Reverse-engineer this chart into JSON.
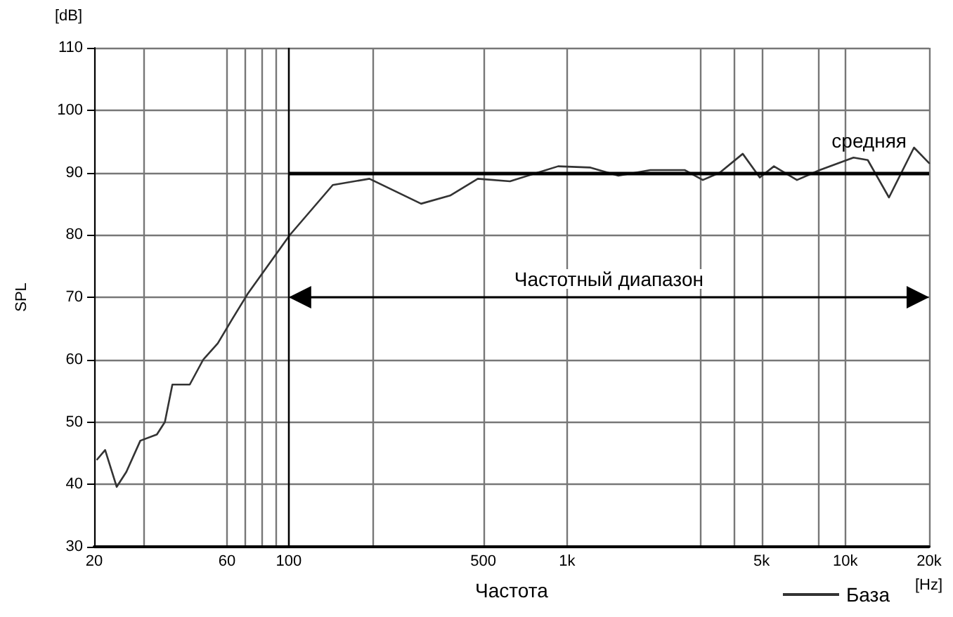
{
  "chart_data": {
    "type": "line",
    "xlabel": "Частота",
    "ylabel": "SPL",
    "log": "x",
    "xlim": [
      20,
      20000
    ],
    "ylim": [
      30,
      110
    ],
    "xticks": [
      20,
      {
        "value": 30,
        "label": null
      },
      60,
      {
        "value": 70,
        "label": null
      },
      {
        "value": 80,
        "label": null
      },
      {
        "value": 90,
        "label": null
      },
      100,
      {
        "value": 200,
        "label": null
      },
      500,
      {
        "value": 1000,
        "label": "1k"
      },
      {
        "value": 3000,
        "label": null
      },
      {
        "value": 4000,
        "label": null
      },
      {
        "value": 5000,
        "label": "5k"
      },
      {
        "value": 8000,
        "label": null
      },
      {
        "value": 10000,
        "label": "10k"
      },
      {
        "value": 20000,
        "label": "20k"
      }
    ],
    "yticks": [
      30,
      40,
      50,
      60,
      70,
      80,
      90,
      100,
      110
    ],
    "grid": true,
    "legend": "bottom right",
    "marker": "none",
    "line_style": "solid",
    "x": [
      20.5,
      21.9,
      24.1,
      26.1,
      29.3,
      33.6,
      35.9,
      38.2,
      44.1,
      49.3,
      55.6,
      62.5,
      71.1,
      101,
      144,
      195,
      299,
      380,
      478,
      624,
      929,
      1214,
      1529,
      1992,
      2646,
      3075,
      3543,
      4280,
      4927,
      5540,
      6702,
      8090,
      10700,
      12040,
      14350,
      17650,
      20000
    ],
    "series": [
      {
        "name": "База",
        "color": "#333333",
        "values": [
          44,
          45.5,
          39.6,
          42,
          47,
          48,
          50,
          56,
          56,
          60,
          62.6,
          66.4,
          70.5,
          80,
          88,
          89,
          85,
          86.3,
          89,
          88.6,
          91,
          90.8,
          89.5,
          90.4,
          90.4,
          88.8,
          90,
          93,
          89.2,
          91,
          88.8,
          90.4,
          92.4,
          92,
          86,
          94,
          91.5
        ]
      }
    ],
    "ref_lines": [
      {
        "axis": "y",
        "value": 90,
        "label": "средняя",
        "color": "#000000"
      },
      {
        "axis": "x",
        "value": 100,
        "label": null,
        "color": "#000000"
      }
    ],
    "annotations": [
      "[dB]",
      "[Hz]",
      "Частотный диапазон"
    ]
  }
}
